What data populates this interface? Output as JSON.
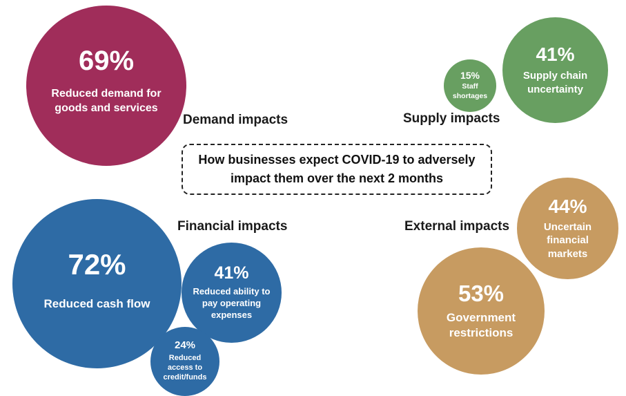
{
  "chart_data": {
    "type": "bubble",
    "title": "How businesses expect COVID-19 to adversely impact them over the next 2 months",
    "unit": "%",
    "background": "#ffffff",
    "legend_position": "none",
    "groups": [
      {
        "label": "Demand impacts",
        "color": "#A02D5A",
        "bubbles": [
          {
            "value": 69,
            "display": "69%",
            "label": "Reduced demand for goods and services"
          }
        ]
      },
      {
        "label": "Supply impacts",
        "color": "#689F61",
        "bubbles": [
          {
            "value": 15,
            "display": "15%",
            "label": "Staff shortages"
          },
          {
            "value": 41,
            "display": "41%",
            "label": "Supply chain uncertainty"
          }
        ]
      },
      {
        "label": "Financial impacts",
        "color": "#2E6BA5",
        "bubbles": [
          {
            "value": 72,
            "display": "72%",
            "label": "Reduced cash flow"
          },
          {
            "value": 41,
            "display": "41%",
            "label": "Reduced ability to pay operating expenses"
          },
          {
            "value": 24,
            "display": "24%",
            "label": "Reduced access to credit/funds"
          }
        ]
      },
      {
        "label": "External impacts",
        "color": "#C79B61",
        "bubbles": [
          {
            "value": 44,
            "display": "44%",
            "label": "Uncertain financial markets"
          },
          {
            "value": 53,
            "display": "53%",
            "label": "Government restrictions"
          }
        ]
      }
    ]
  }
}
